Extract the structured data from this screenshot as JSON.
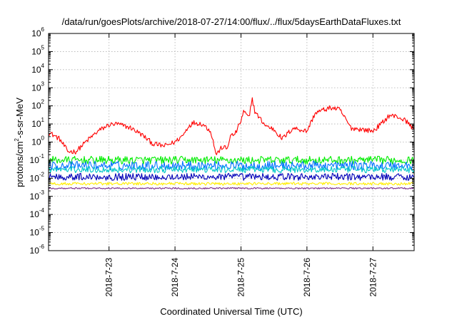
{
  "chart_data": {
    "type": "line",
    "title": "/data/run/goesPlots/archive/2018-07-27/14:00/flux/../flux/5daysEarthDataFluxes.txt",
    "xlabel": "Coordinated Universal Time (UTC)",
    "ylabel": {
      "prefix": "protons/cm",
      "exponent": "2",
      "suffix": "-s-sr-MeV"
    },
    "yscale": "log",
    "ylim": [
      1e-06,
      1000000.0
    ],
    "y_ticks": [
      {
        "base": "10",
        "exp": "-6",
        "value": 1e-06
      },
      {
        "base": "10",
        "exp": "-5",
        "value": 1e-05
      },
      {
        "base": "10",
        "exp": "-4",
        "value": 0.0001
      },
      {
        "base": "10",
        "exp": "-3",
        "value": 0.001
      },
      {
        "base": "10",
        "exp": "-2",
        "value": 0.01
      },
      {
        "base": "10",
        "exp": "-1",
        "value": 0.1
      },
      {
        "base": "10",
        "exp": "0",
        "value": 1
      },
      {
        "base": "10",
        "exp": "1",
        "value": 10
      },
      {
        "base": "10",
        "exp": "2",
        "value": 100
      },
      {
        "base": "10",
        "exp": "3",
        "value": 1000
      },
      {
        "base": "10",
        "exp": "4",
        "value": 10000
      },
      {
        "base": "10",
        "exp": "5",
        "value": 100000
      },
      {
        "base": "10",
        "exp": "6",
        "value": 1000000
      }
    ],
    "x_range_days": [
      "2018-07-22 02:00",
      "2018-07-27 15:00"
    ],
    "x_ticks": [
      "2018-7-23",
      "2018-7-24",
      "2018-7-25",
      "2018-7-26",
      "2018-7-27"
    ],
    "grid": true,
    "series": [
      {
        "color": "#ff0000",
        "x": [
          "2018-07-22 02:00",
          "2018-07-22 06:00",
          "2018-07-22 09:00",
          "2018-07-22 12:00",
          "2018-07-22 16:00",
          "2018-07-22 20:00",
          "2018-07-23 00:00",
          "2018-07-23 03:00",
          "2018-07-23 08:00",
          "2018-07-23 12:00",
          "2018-07-23 16:00",
          "2018-07-23 20:00",
          "2018-07-24 00:00",
          "2018-07-24 03:00",
          "2018-07-24 05:00",
          "2018-07-24 07:00",
          "2018-07-24 10:00",
          "2018-07-24 13:00",
          "2018-07-24 15:00",
          "2018-07-24 17:00",
          "2018-07-24 18:00",
          "2018-07-24 19:00",
          "2018-07-24 20:00",
          "2018-07-24 22:00",
          "2018-07-25 00:00",
          "2018-07-25 01:00",
          "2018-07-25 03:00",
          "2018-07-25 04:00",
          "2018-07-25 05:00",
          "2018-07-25 06:00",
          "2018-07-25 09:00",
          "2018-07-25 12:00",
          "2018-07-25 15:00",
          "2018-07-25 19:00",
          "2018-07-26 00:00",
          "2018-07-26 03:00",
          "2018-07-26 06:00",
          "2018-07-26 09:00",
          "2018-07-26 12:00",
          "2018-07-26 16:00",
          "2018-07-26 20:00",
          "2018-07-27 00:00",
          "2018-07-27 03:00",
          "2018-07-27 06:00",
          "2018-07-27 09:00",
          "2018-07-27 12:00",
          "2018-07-27 15:00"
        ],
        "y": [
          3.5,
          1.5,
          0.3,
          0.3,
          1.2,
          4,
          9,
          10,
          6,
          2.5,
          0.8,
          0.6,
          1,
          2.5,
          8,
          12,
          10,
          4,
          0.2,
          0.5,
          0.5,
          0.4,
          2,
          3,
          15,
          50,
          20,
          300,
          50,
          30,
          8,
          5,
          1.5,
          6,
          4,
          40,
          60,
          80,
          60,
          6,
          5,
          4,
          10,
          30,
          25,
          15,
          5
        ]
      },
      {
        "color": "#00ee00",
        "x": [
          "2018-07-22 02:00",
          "2018-07-27 15:00"
        ],
        "y": [
          0.1,
          0.1
        ]
      },
      {
        "color": "#0072ff",
        "x": [
          "2018-07-22 02:00",
          "2018-07-27 15:00"
        ],
        "y": [
          0.05,
          0.05
        ]
      },
      {
        "color": "#00c8c8",
        "x": [
          "2018-07-22 02:00",
          "2018-07-27 15:00"
        ],
        "y": [
          0.03,
          0.03
        ]
      },
      {
        "color": "#0000b8",
        "x": [
          "2018-07-22 02:00",
          "2018-07-27 15:00"
        ],
        "y": [
          0.012,
          0.012
        ]
      },
      {
        "color": "#ffee00",
        "x": [
          "2018-07-22 02:00",
          "2018-07-27 15:00"
        ],
        "y": [
          0.005,
          0.005
        ]
      },
      {
        "color": "#7a2e8a",
        "x": [
          "2018-07-22 02:00",
          "2018-07-27 15:00"
        ],
        "y": [
          0.0028,
          0.0028
        ]
      }
    ]
  }
}
